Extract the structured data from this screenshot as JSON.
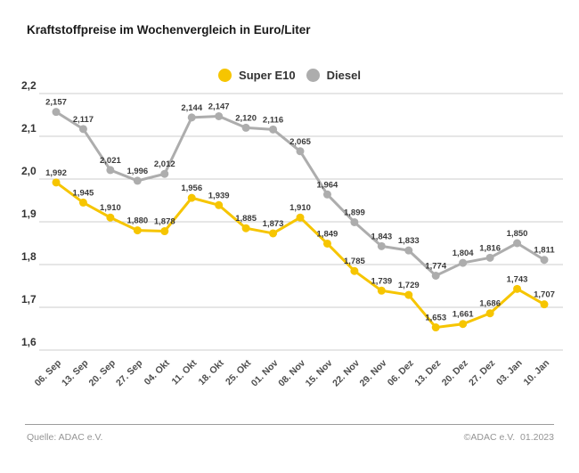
{
  "title": "Kraftstoffpreise im Wochenvergleich in Euro/Liter",
  "legend": {
    "items": [
      {
        "label": "Super E10",
        "color": "#F6C500"
      },
      {
        "label": "Diesel",
        "color": "#ADADAD"
      }
    ]
  },
  "chart_data": {
    "type": "line",
    "title": "Kraftstoffpreise im Wochenvergleich in Euro/Liter",
    "categories": [
      "06. Sep",
      "13. Sep",
      "20. Sep",
      "27. Sep",
      "04. Okt",
      "11. Okt",
      "18. Okt",
      "25. Okt",
      "01. Nov",
      "08. Nov",
      "15. Nov",
      "22. Nov",
      "29. Nov",
      "06. Dez",
      "13. Dez",
      "20. Dez",
      "27. Dez",
      "03. Jan",
      "10. Jan"
    ],
    "series": [
      {
        "name": "Super E10",
        "color": "#F6C500",
        "values": [
          1.992,
          1.945,
          1.91,
          1.88,
          1.878,
          1.956,
          1.939,
          1.885,
          1.873,
          1.91,
          1.849,
          1.785,
          1.739,
          1.729,
          1.653,
          1.661,
          1.686,
          1.743,
          1.707
        ]
      },
      {
        "name": "Diesel",
        "color": "#ADADAD",
        "values": [
          2.157,
          2.117,
          2.021,
          1.996,
          2.012,
          2.144,
          2.147,
          2.12,
          2.116,
          2.065,
          1.964,
          1.899,
          1.843,
          1.833,
          1.774,
          1.804,
          1.816,
          1.85,
          1.811
        ]
      }
    ],
    "xlabel": "",
    "ylabel": "",
    "ylim": [
      1.6,
      2.2
    ],
    "yticks": [
      2.2,
      2.1,
      2.0,
      1.9,
      1.8,
      1.7,
      1.6
    ],
    "grid": true,
    "legend_position": "top-center",
    "value_labels": true,
    "decimal_separator": ","
  },
  "footer": {
    "source": "Quelle: ADAC e.V.",
    "copyright": "©ADAC e.V.  01.2023"
  }
}
